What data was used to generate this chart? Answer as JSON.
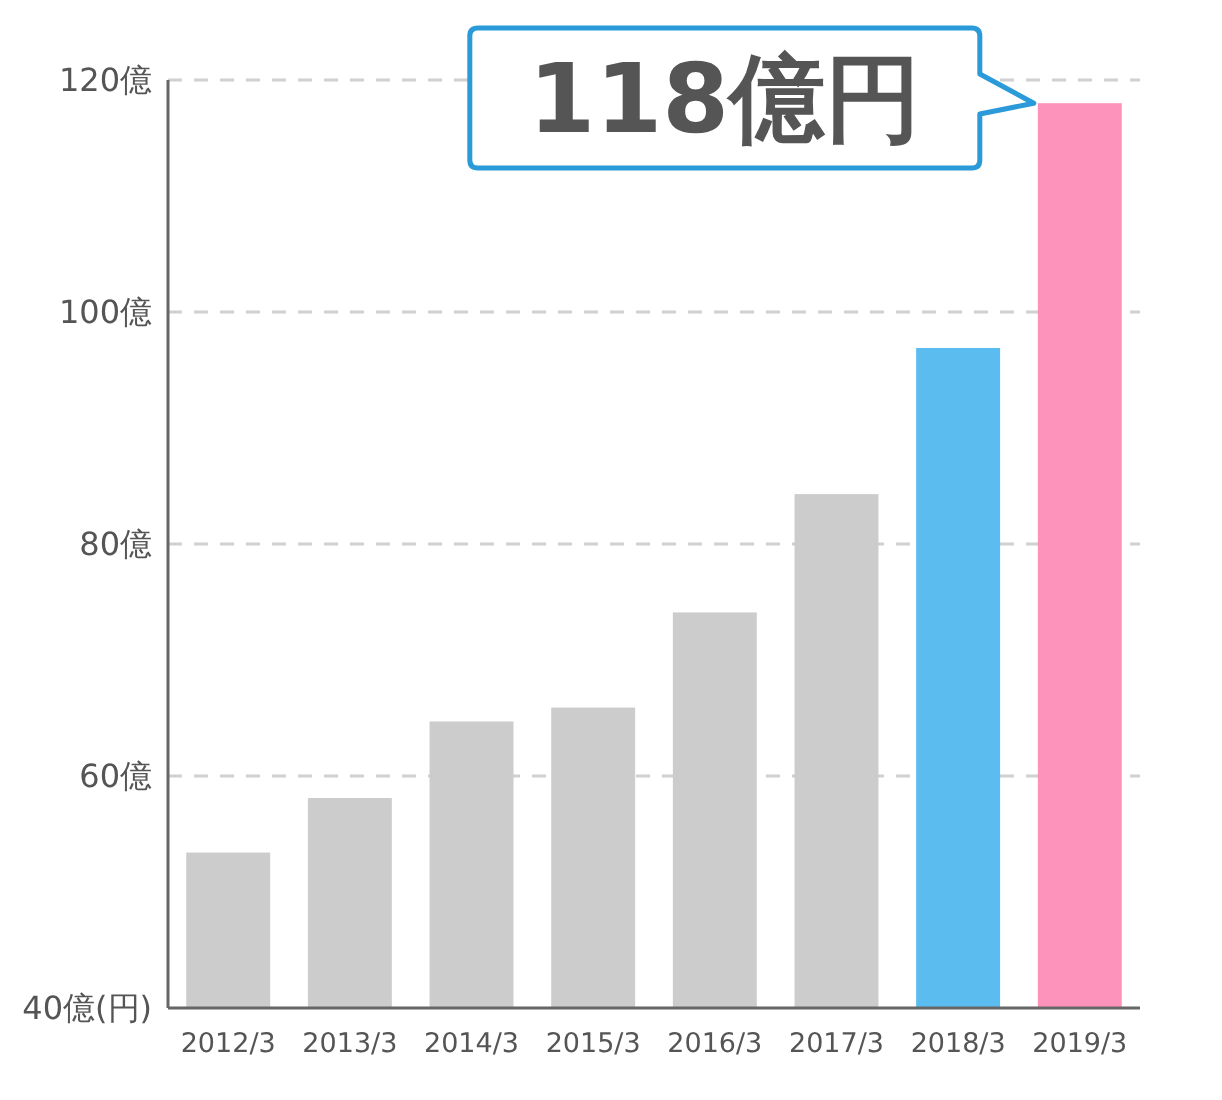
{
  "chart_data": {
    "type": "bar",
    "categories": [
      "2012/3",
      "2013/3",
      "2014/3",
      "2015/3",
      "2016/3",
      "2017/3",
      "2018/3",
      "2019/3"
    ],
    "values": [
      53.4,
      58.1,
      64.7,
      65.9,
      74.1,
      84.3,
      96.9,
      118
    ],
    "colors": [
      "#cccccc",
      "#cccccc",
      "#cccccc",
      "#cccccc",
      "#cccccc",
      "#cccccc",
      "#5bbcf0",
      "#fd93bb"
    ],
    "ylim": [
      40,
      120
    ],
    "yticks": [
      {
        "value": 40,
        "label": "40億(円)"
      },
      {
        "value": 60,
        "label": "60億"
      },
      {
        "value": 80,
        "label": "80億"
      },
      {
        "value": 100,
        "label": "100億"
      },
      {
        "value": 120,
        "label": "120億"
      }
    ],
    "grid": "y",
    "annotations": [
      {
        "text": "118億円",
        "x": "2019/3",
        "y": 118
      }
    ]
  }
}
